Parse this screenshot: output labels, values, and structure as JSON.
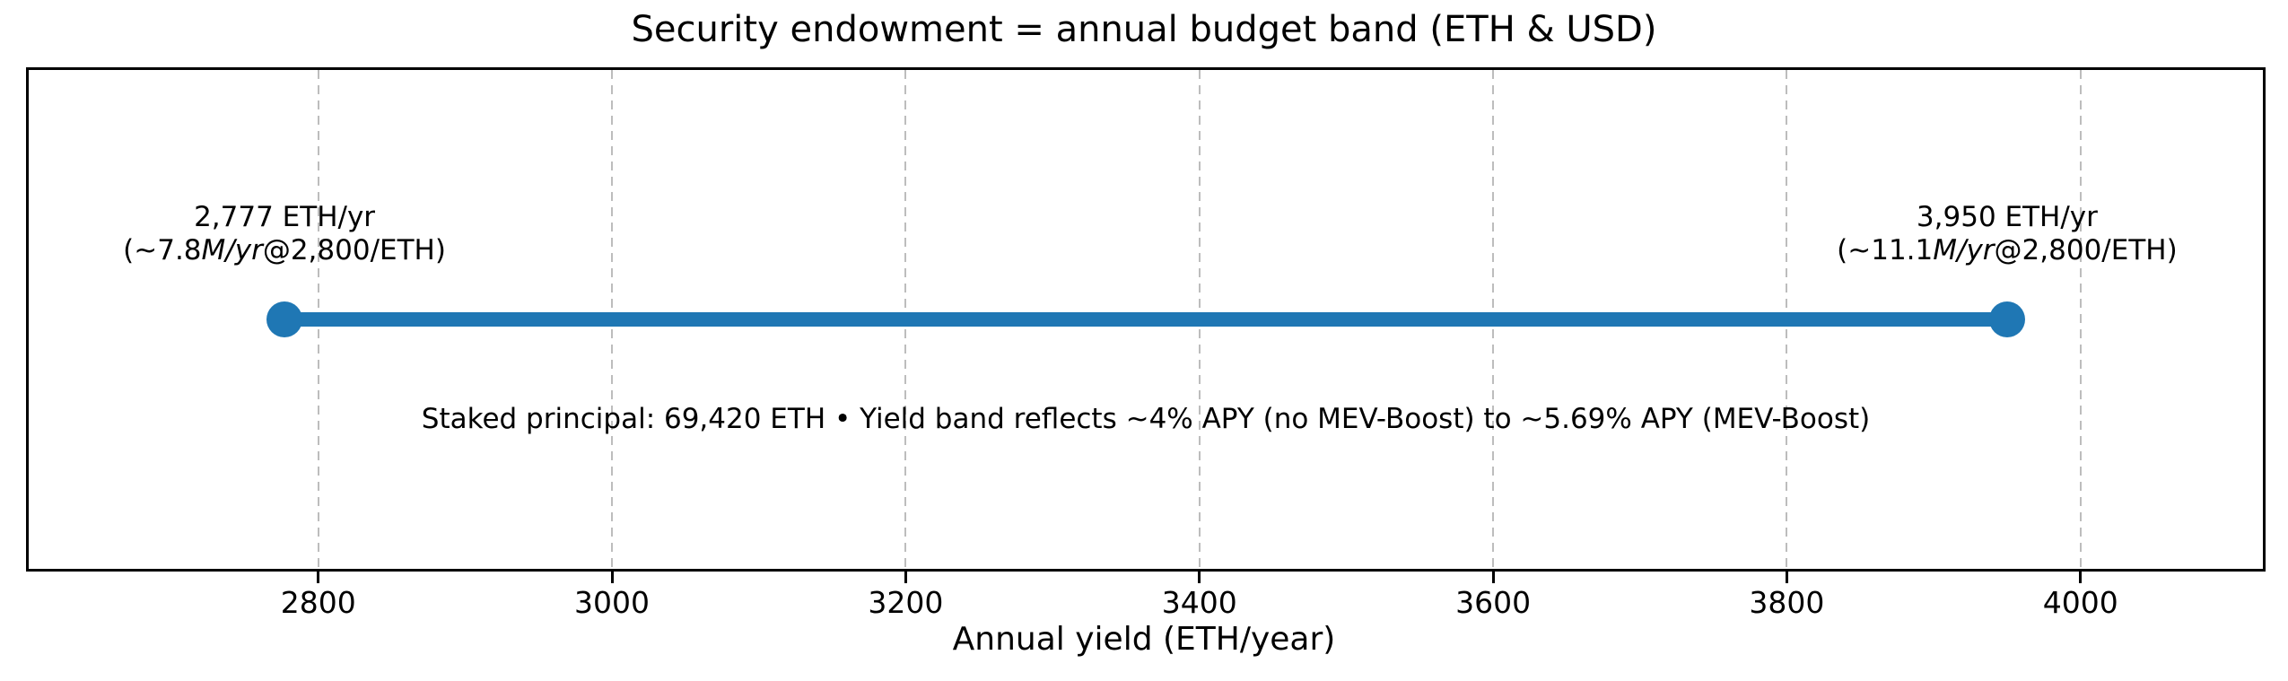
{
  "chart_data": {
    "type": "line",
    "subtype": "horizontal-range-dumbbell",
    "title": "Security endowment = annual budget band (ETH & USD)",
    "xlabel": "Annual yield (ETH/year)",
    "xlim": [
      2601,
      4126
    ],
    "x_ticks": [
      2800,
      3000,
      3200,
      3400,
      3600,
      3800,
      4000
    ],
    "grid": {
      "axis": "x",
      "style": "dashed",
      "color": "#bdbdbd"
    },
    "legend": "none",
    "band": {
      "start": 2777,
      "end": 3950,
      "unit": "ETH/yr",
      "color": "#1f77b4",
      "start_usd_m_per_yr": 7.8,
      "end_usd_m_per_yr": 11.1,
      "eth_price_usd": 2800
    },
    "annotations": {
      "left": {
        "x": 2777,
        "line1": "2,777 ETH/yr",
        "usd_pre": "(~7.8",
        "usd_italic": "M/yr",
        "usd_post": "@2,800/ETH)"
      },
      "right": {
        "x": 3950,
        "line1": "3,950 ETH/yr",
        "usd_pre": "(~11.1",
        "usd_italic": "M/yr",
        "usd_post": "@2,800/ETH)"
      }
    },
    "note": "Staked principal: 69,420 ETH • Yield band reflects ~4% APY (no MEV-Boost) to ~5.69% APY (MEV-Boost)"
  }
}
